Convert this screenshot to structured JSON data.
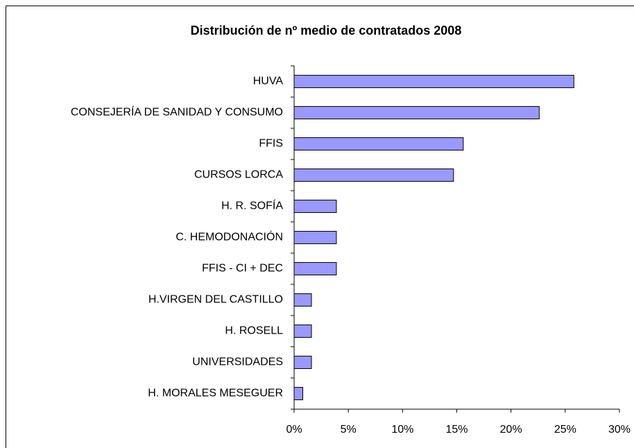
{
  "chart_data": {
    "type": "barh",
    "title": "Distribución de nº medio de contratados 2008",
    "categories": [
      "HUVA",
      "CONSEJERÍA DE SANIDAD Y CONSUMO",
      "FFIS",
      "CURSOS LORCA",
      "H. R. SOFÍA",
      "C. HEMODONACIÓN",
      "FFIS - CI + DEC",
      "H.VIRGEN DEL CASTILLO",
      "H. ROSELL",
      "UNIVERSIDADES",
      "H. MORALES MESEGUER"
    ],
    "values": [
      25.8,
      22.6,
      15.6,
      14.7,
      3.9,
      3.9,
      3.9,
      1.6,
      1.6,
      1.6,
      0.8
    ],
    "color": "#9999ff",
    "xlim": [
      0,
      30
    ],
    "xticks": [
      {
        "value": 0,
        "label": "0%"
      },
      {
        "value": 5,
        "label": "5%"
      },
      {
        "value": 10,
        "label": "10%"
      },
      {
        "value": 15,
        "label": "15%"
      },
      {
        "value": 20,
        "label": "20%"
      },
      {
        "value": 25,
        "label": "25%"
      },
      {
        "value": 30,
        "label": "30%"
      }
    ],
    "grid": false
  }
}
